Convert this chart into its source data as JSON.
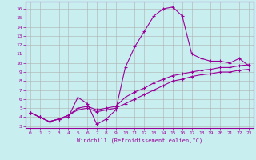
{
  "xlabel": "Windchill (Refroidissement éolien,°C)",
  "bg_color": "#c8eef0",
  "grid_color": "#b0b0b0",
  "line_color": "#990099",
  "x_ticks": [
    0,
    1,
    2,
    3,
    4,
    5,
    6,
    7,
    8,
    9,
    10,
    11,
    12,
    13,
    14,
    15,
    16,
    17,
    18,
    19,
    20,
    21,
    22,
    23
  ],
  "y_ticks": [
    3,
    4,
    5,
    6,
    7,
    8,
    9,
    10,
    11,
    12,
    13,
    14,
    15,
    16
  ],
  "ylim": [
    2.8,
    16.8
  ],
  "xlim": [
    -0.5,
    23.5
  ],
  "series1_x": [
    0,
    1,
    2,
    3,
    4,
    5,
    6,
    7,
    8,
    9,
    10,
    11,
    12,
    13,
    14,
    15,
    16,
    17,
    18,
    19,
    20,
    21,
    22,
    23
  ],
  "series1_y": [
    4.5,
    4.0,
    3.5,
    3.8,
    4.0,
    6.2,
    5.5,
    3.2,
    3.8,
    4.8,
    9.5,
    11.8,
    13.5,
    15.2,
    16.0,
    16.2,
    15.2,
    11.0,
    10.5,
    10.2,
    10.2,
    10.0,
    10.5,
    9.7
  ],
  "series2_x": [
    0,
    1,
    2,
    3,
    4,
    5,
    6,
    7,
    8,
    9,
    10,
    11,
    12,
    13,
    14,
    15,
    16,
    17,
    18,
    19,
    20,
    21,
    22,
    23
  ],
  "series2_y": [
    4.5,
    4.0,
    3.5,
    3.8,
    4.2,
    5.0,
    5.2,
    4.8,
    5.0,
    5.2,
    6.2,
    6.8,
    7.2,
    7.8,
    8.2,
    8.6,
    8.8,
    9.0,
    9.2,
    9.3,
    9.5,
    9.5,
    9.7,
    9.8
  ],
  "series3_x": [
    0,
    1,
    2,
    3,
    4,
    5,
    6,
    7,
    8,
    9,
    10,
    11,
    12,
    13,
    14,
    15,
    16,
    17,
    18,
    19,
    20,
    21,
    22,
    23
  ],
  "series3_y": [
    4.5,
    4.0,
    3.5,
    3.8,
    4.2,
    4.8,
    5.0,
    4.6,
    4.8,
    5.0,
    5.5,
    6.0,
    6.5,
    7.0,
    7.5,
    8.0,
    8.2,
    8.5,
    8.7,
    8.8,
    9.0,
    9.0,
    9.2,
    9.3
  ]
}
